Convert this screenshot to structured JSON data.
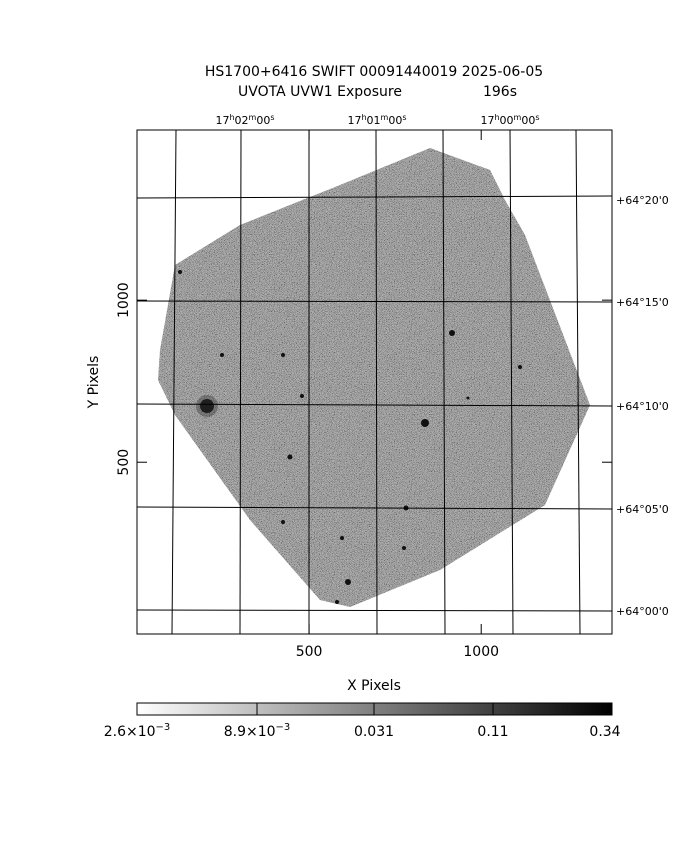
{
  "title": "HS1700+6416 SWIFT 00091440019 2025-06-05",
  "subtitle": "UVOTA UVW1 Exposure",
  "exposure": "196s",
  "x_axis": {
    "label": "X Pixels",
    "lim": [
      0,
      1380
    ],
    "ticks": [
      500,
      1000
    ]
  },
  "y_axis": {
    "label": "Y Pixels",
    "lim": [
      -30,
      1525
    ],
    "ticks": [
      500,
      1000
    ]
  },
  "ra_labels": [
    [
      "17",
      "h",
      "02",
      "m",
      "00",
      "s"
    ],
    [
      "17",
      "h",
      "01",
      "m",
      "00",
      "s"
    ],
    [
      "17",
      "h",
      "00",
      "m",
      "00",
      "s"
    ]
  ],
  "dec_labels": [
    "+64°20'0",
    "+64°15'0",
    "+64°10'0",
    "+64°05'0",
    "+64°00'0"
  ],
  "colorbar_labels": [
    [
      "2.6×10",
      "−3"
    ],
    [
      "8.9×10",
      "−3"
    ],
    [
      "0.031"
    ],
    [
      "0.11"
    ],
    [
      "0.34"
    ]
  ]
}
